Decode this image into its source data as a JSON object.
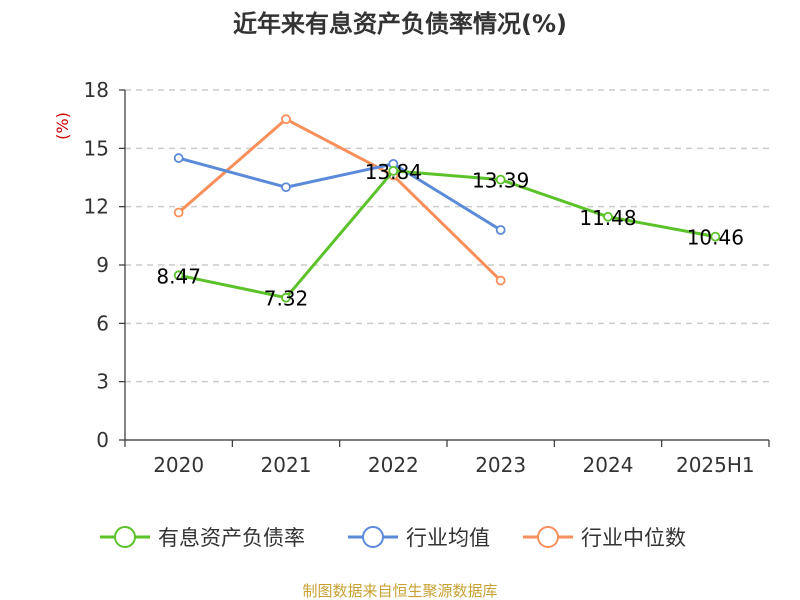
{
  "chart_data": {
    "type": "line",
    "title": "近年来有息资产负债率情况(%)",
    "ylabel": "(%)",
    "categories": [
      "2020",
      "2021",
      "2022",
      "2023",
      "2024",
      "2025H1"
    ],
    "ylim": [
      0,
      18
    ],
    "yticks": [
      0,
      3,
      6,
      9,
      12,
      15,
      18
    ],
    "grid": true,
    "legend_position": "bottom",
    "series": [
      {
        "name": "有息资产负债率",
        "color": "#5cc22a",
        "values": [
          8.47,
          7.32,
          13.84,
          13.39,
          11.48,
          10.46
        ],
        "labels": [
          "8.47",
          "7.32",
          "13.84",
          "13.39",
          "11.48",
          "10.46"
        ]
      },
      {
        "name": "行业均值",
        "color": "#5b8ad8",
        "values": [
          14.5,
          13.0,
          14.2,
          10.8,
          null,
          null
        ]
      },
      {
        "name": "行业中位数",
        "color": "#f98f5b",
        "values": [
          11.7,
          16.5,
          13.6,
          8.2,
          null,
          null
        ]
      }
    ]
  },
  "source": "制图数据来自恒生聚源数据库",
  "colors": {
    "ylabel": "#cc0000",
    "source": "#c8a033",
    "axis": "#333333",
    "grid": "#cccccc"
  }
}
